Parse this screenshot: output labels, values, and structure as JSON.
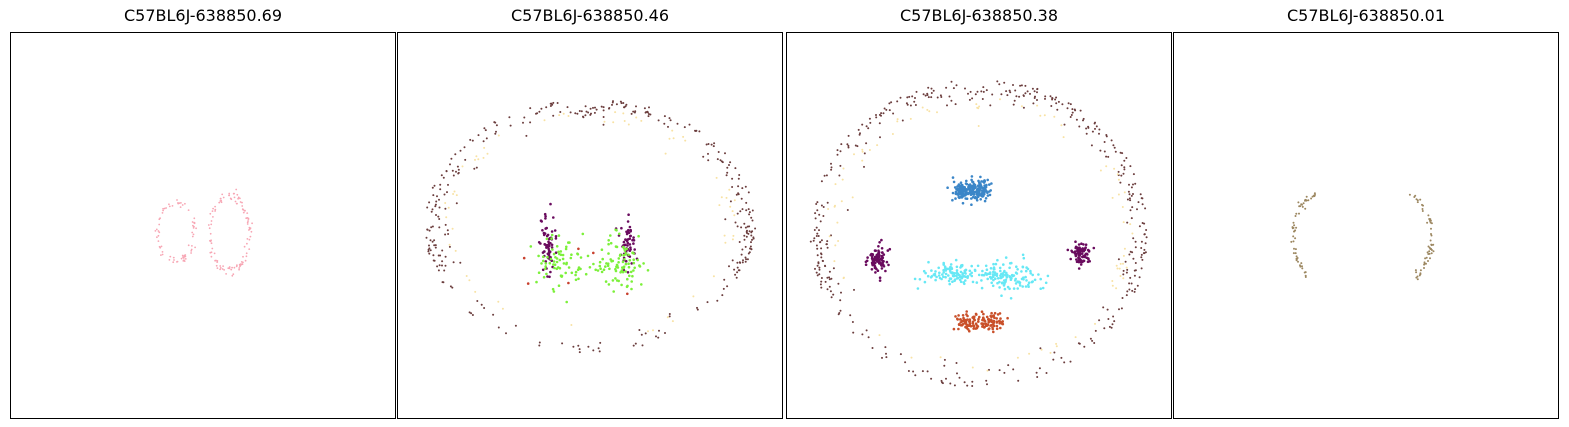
{
  "figure": {
    "panel_titles": [
      "C57BL6J-638850.69",
      "C57BL6J-638850.46",
      "C57BL6J-638850.38",
      "C57BL6J-638850.01"
    ]
  },
  "chart_data": [
    {
      "type": "scatter",
      "title": "C57BL6J-638850.69",
      "xlabel": "",
      "ylabel": "",
      "grid": false,
      "axes_ticks": false,
      "xlim": [
        0,
        1
      ],
      "ylim": [
        0,
        1
      ],
      "series": [
        {
          "color": "#f7a6b4",
          "note_shape": "two rings",
          "rings": [
            {
              "cx": 0.43,
              "cy": 0.515,
              "rx": 0.048,
              "ry": 0.078,
              "n": 70
            },
            {
              "cx": 0.57,
              "cy": 0.52,
              "rx": 0.05,
              "ry": 0.1,
              "n": 110
            }
          ]
        }
      ]
    },
    {
      "type": "scatter",
      "title": "C57BL6J-638850.46",
      "xlabel": "",
      "ylabel": "",
      "grid": false,
      "axes_ticks": false,
      "xlim": [
        0,
        1
      ],
      "ylim": [
        0,
        1
      ],
      "series": [
        {
          "color": "#6b3d3d",
          "outline": {
            "cx": 0.5,
            "cy": 0.5,
            "rx": 0.43,
            "ry": 0.33,
            "n": 320
          }
        },
        {
          "color": "#f8e2a4",
          "outline": {
            "cx": 0.5,
            "cy": 0.5,
            "rx": 0.39,
            "ry": 0.3,
            "n": 60
          }
        },
        {
          "color": "#6a0b5e",
          "clusters": [
            {
              "cx": 0.39,
              "cy": 0.555,
              "sx": 0.01,
              "sy": 0.04,
              "n": 70
            },
            {
              "cx": 0.6,
              "cy": 0.555,
              "sx": 0.01,
              "sy": 0.035,
              "n": 55
            }
          ]
        },
        {
          "color": "#7cf03a",
          "clusters": [
            {
              "cx": 0.42,
              "cy": 0.6,
              "sx": 0.03,
              "sy": 0.035,
              "n": 70
            },
            {
              "cx": 0.58,
              "cy": 0.6,
              "sx": 0.035,
              "sy": 0.035,
              "n": 90
            }
          ]
        },
        {
          "color": "#c8402e",
          "clusters": [
            {
              "cx": 0.5,
              "cy": 0.62,
              "sx": 0.1,
              "sy": 0.04,
              "n": 6
            }
          ]
        }
      ]
    },
    {
      "type": "scatter",
      "title": "C57BL6J-638850.38",
      "xlabel": "",
      "ylabel": "",
      "grid": false,
      "axes_ticks": false,
      "xlim": [
        0,
        1
      ],
      "ylim": [
        0,
        1
      ],
      "series": [
        {
          "color": "#6b3d3d",
          "outline": {
            "cx": 0.5,
            "cy": 0.52,
            "rx": 0.44,
            "ry": 0.4,
            "n": 400
          }
        },
        {
          "color": "#f8e2a4",
          "outline": {
            "cx": 0.5,
            "cy": 0.52,
            "rx": 0.4,
            "ry": 0.36,
            "n": 80
          }
        },
        {
          "color": "#3b86c8",
          "clusters": [
            {
              "cx": 0.46,
              "cy": 0.41,
              "sx": 0.014,
              "sy": 0.013,
              "n": 120
            },
            {
              "cx": 0.5,
              "cy": 0.405,
              "sx": 0.014,
              "sy": 0.013,
              "n": 120
            }
          ]
        },
        {
          "color": "#6a0b5e",
          "clusters": [
            {
              "cx": 0.235,
              "cy": 0.59,
              "sx": 0.014,
              "sy": 0.016,
              "n": 90
            },
            {
              "cx": 0.765,
              "cy": 0.575,
              "sx": 0.012,
              "sy": 0.016,
              "n": 80
            }
          ]
        },
        {
          "color": "#67e8f5",
          "clusters": [
            {
              "cx": 0.43,
              "cy": 0.625,
              "sx": 0.04,
              "sy": 0.014,
              "n": 110
            },
            {
              "cx": 0.58,
              "cy": 0.63,
              "sx": 0.045,
              "sy": 0.018,
              "n": 130
            }
          ]
        },
        {
          "color": "#c9502a",
          "clusters": [
            {
              "cx": 0.47,
              "cy": 0.75,
              "sx": 0.02,
              "sy": 0.012,
              "n": 70
            },
            {
              "cx": 0.53,
              "cy": 0.75,
              "sx": 0.02,
              "sy": 0.012,
              "n": 70
            }
          ]
        }
      ]
    },
    {
      "type": "scatter",
      "title": "C57BL6J-638850.01",
      "xlabel": "",
      "ylabel": "",
      "grid": false,
      "axes_ticks": false,
      "xlim": [
        0,
        1
      ],
      "ylim": [
        0,
        1
      ],
      "series": [
        {
          "color": "#9c8760",
          "arcs": [
            {
              "cx": 0.38,
              "cy": 0.53,
              "rx": 0.07,
              "ry": 0.11,
              "from_deg": 100,
              "to_deg": 250,
              "n": 55
            },
            {
              "cx": 0.6,
              "cy": 0.53,
              "rx": 0.07,
              "ry": 0.11,
              "from_deg": -70,
              "to_deg": 80,
              "n": 55
            }
          ]
        }
      ]
    }
  ]
}
